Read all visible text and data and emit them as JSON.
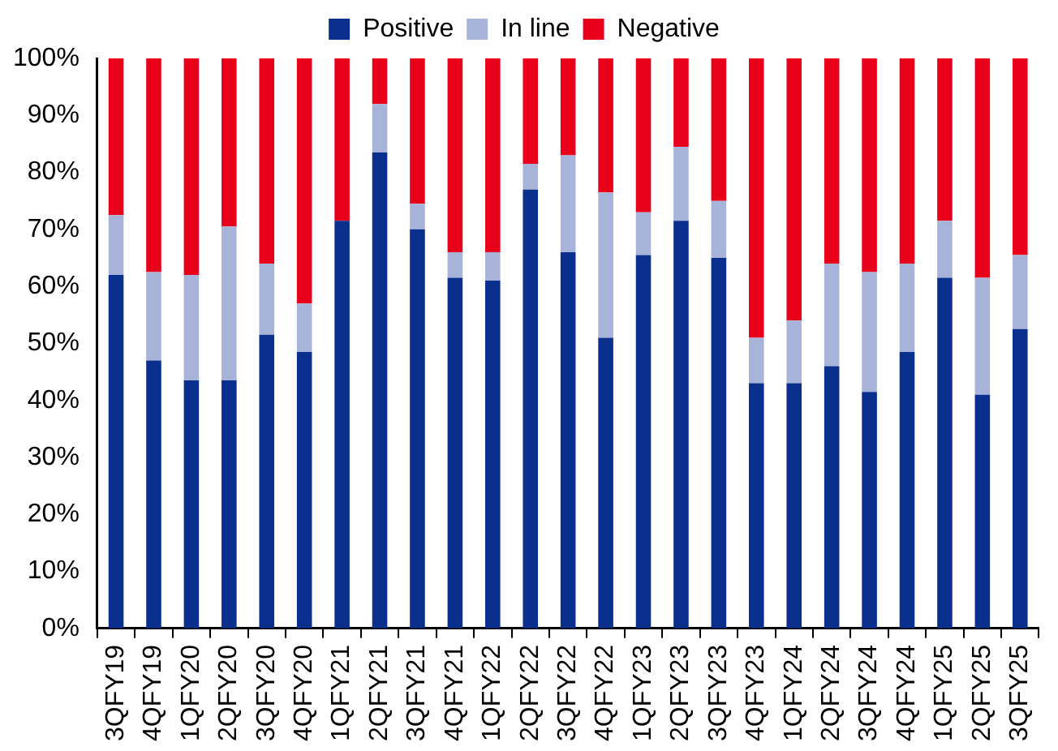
{
  "chart_data": {
    "type": "bar",
    "stacked": true,
    "legend": "top",
    "grid": false,
    "categories": [
      "3QFY19",
      "4QFY19",
      "1QFY20",
      "2QFY20",
      "3QFY20",
      "4QFY20",
      "1QFY21",
      "2QFY21",
      "3QFY21",
      "4QFY21",
      "1QFY22",
      "2QFY22",
      "3QFY22",
      "4QFY22",
      "1QFY23",
      "2QFY23",
      "3QFY23",
      "4QFY23",
      "1QFY24",
      "2QFY24",
      "3QFY24",
      "4QFY24",
      "1QFY25",
      "2QFY25",
      "3QFY25"
    ],
    "series": [
      {
        "name": "Positive",
        "color": "#0a2f8c",
        "values": [
          62,
          47,
          43.5,
          43.5,
          51.5,
          48.5,
          71.5,
          83.5,
          70,
          61.5,
          61,
          77,
          66,
          51,
          65.5,
          71.5,
          65,
          43,
          43,
          46,
          41.5,
          48.5,
          61.5,
          41,
          52.5
        ]
      },
      {
        "name": "In line",
        "color": "#a7b3d9",
        "values": [
          10.5,
          15.5,
          18.5,
          27,
          12.5,
          8.5,
          0,
          8.5,
          4.5,
          4.5,
          5,
          4.5,
          17,
          25.5,
          7.5,
          13,
          10,
          8,
          11,
          18,
          21,
          15.5,
          10,
          20.5,
          13
        ]
      },
      {
        "name": "Negative",
        "color": "#e8001a",
        "values": [
          27.5,
          37.5,
          38,
          29.5,
          36,
          43,
          28.5,
          8,
          25.5,
          34,
          34,
          18.5,
          17,
          23.5,
          27,
          15.5,
          25,
          49,
          46,
          36,
          37.5,
          36,
          28.5,
          38.5,
          34.5
        ]
      }
    ],
    "ylim": [
      0,
      100
    ],
    "yticks": [
      {
        "value": 0,
        "label": "0%"
      },
      {
        "value": 10,
        "label": "10%"
      },
      {
        "value": 20,
        "label": "20%"
      },
      {
        "value": 30,
        "label": "30%"
      },
      {
        "value": 40,
        "label": "40%"
      },
      {
        "value": 50,
        "label": "50%"
      },
      {
        "value": 60,
        "label": "60%"
      },
      {
        "value": 70,
        "label": "70%"
      },
      {
        "value": 80,
        "label": "80%"
      },
      {
        "value": 90,
        "label": "90%"
      },
      {
        "value": 100,
        "label": "100%"
      }
    ]
  }
}
